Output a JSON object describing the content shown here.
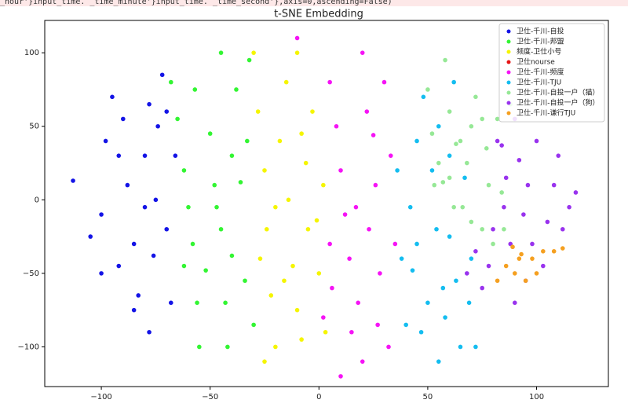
{
  "code_line": "_hour'}input_time. _time_minute'}input_time. _time_second'},axis=0,ascending=False)",
  "chart_data": {
    "type": "scatter",
    "title": "t-SNE Embedding",
    "xlim": [
      -126,
      133
    ],
    "ylim": [
      -127,
      122
    ],
    "xticks": [
      {
        "value": -100,
        "label": "−100"
      },
      {
        "value": -50,
        "label": "−50"
      },
      0,
      50,
      100
    ],
    "yticks": [
      {
        "value": -100,
        "label": "−100"
      },
      {
        "value": -50,
        "label": "−50"
      },
      0,
      50,
      100
    ],
    "grid": false,
    "legend": "upper right",
    "series": [
      {
        "name": "卫仕-千川-自投",
        "color": "#1414e6",
        "x": [
          -113,
          -105,
          -100,
          -98,
          -95,
          -92,
          -90,
          -88,
          -85,
          -83,
          -80,
          -80,
          -78,
          -76,
          -75,
          -74,
          -72,
          -70,
          -70,
          -68,
          -66,
          -92,
          -100,
          -85,
          -78
        ],
        "y": [
          13,
          -25,
          -10,
          40,
          70,
          30,
          55,
          10,
          -30,
          -65,
          30,
          -5,
          65,
          -38,
          0,
          50,
          85,
          60,
          -20,
          -70,
          30,
          -45,
          -50,
          -75,
          -90
        ]
      },
      {
        "name": "卫仕-千川-邦盟",
        "color": "#33f533",
        "x": [
          -68,
          -65,
          -62,
          -60,
          -58,
          -56,
          -52,
          -50,
          -48,
          -45,
          -43,
          -42,
          -40,
          -40,
          -38,
          -36,
          -34,
          -33,
          -30,
          -32,
          -45,
          -55,
          -62,
          -57,
          -47
        ],
        "y": [
          80,
          55,
          20,
          -5,
          -30,
          -70,
          -48,
          45,
          10,
          -20,
          -70,
          -100,
          -38,
          30,
          75,
          12,
          -55,
          40,
          -85,
          95,
          100,
          -100,
          -45,
          75,
          -5
        ]
      },
      {
        "name": "频度-卫仕小号",
        "color": "#f5f500",
        "x": [
          -30,
          -28,
          -25,
          -24,
          -22,
          -20,
          -18,
          -15,
          -14,
          -12,
          -10,
          -8,
          -6,
          -5,
          -3,
          -1,
          0,
          2,
          -20,
          -27,
          -10,
          -25,
          3,
          -16,
          -8
        ],
        "y": [
          100,
          60,
          20,
          -20,
          -65,
          -100,
          40,
          80,
          0,
          -45,
          -75,
          -95,
          25,
          -20,
          60,
          -14,
          -50,
          10,
          -5,
          -40,
          100,
          -110,
          -90,
          -55,
          45
        ]
      },
      {
        "name": "卫仕nourse",
        "color": "#e61414",
        "x": [],
        "y": []
      },
      {
        "name": "卫仕-千川-频度",
        "color": "#f514f5",
        "x": [
          -10,
          5,
          8,
          10,
          12,
          14,
          15,
          18,
          20,
          22,
          23,
          25,
          26,
          28,
          30,
          32,
          33,
          2,
          6,
          10,
          35,
          20,
          17,
          5,
          27
        ],
        "y": [
          110,
          80,
          50,
          20,
          -10,
          -40,
          -90,
          -70,
          -110,
          60,
          -20,
          44,
          10,
          -50,
          80,
          -100,
          30,
          -80,
          -60,
          -120,
          -30,
          100,
          -5,
          -30,
          -85
        ]
      },
      {
        "name": "卫仕-千川-TJU",
        "color": "#14bdf0",
        "x": [
          36,
          38,
          40,
          42,
          43,
          45,
          47,
          50,
          52,
          54,
          55,
          57,
          58,
          60,
          62,
          63,
          65,
          67,
          69,
          70,
          72,
          55,
          48,
          60,
          45
        ],
        "y": [
          20,
          -40,
          -85,
          -5,
          -48,
          40,
          -90,
          -70,
          20,
          -20,
          50,
          -60,
          -80,
          -25,
          80,
          -55,
          -100,
          15,
          -70,
          -40,
          -100,
          -110,
          70,
          30,
          -30
        ]
      },
      {
        "name": "卫仕-千川-自投一户（猫）",
        "color": "#96e896",
        "x": [
          50,
          52,
          55,
          57,
          58,
          60,
          62,
          65,
          68,
          70,
          72,
          75,
          78,
          80,
          82,
          85,
          88,
          63,
          70,
          77,
          60,
          84,
          53,
          75,
          66
        ],
        "y": [
          75,
          45,
          25,
          12,
          95,
          60,
          -5,
          40,
          25,
          -15,
          70,
          -20,
          10,
          -30,
          55,
          -20,
          65,
          38,
          50,
          35,
          15,
          5,
          10,
          55,
          -5
        ]
      },
      {
        "name": "卫仕-千川-自投一户（狗）",
        "color": "#9933ee",
        "x": [
          68,
          72,
          75,
          78,
          80,
          82,
          84,
          86,
          88,
          90,
          92,
          94,
          96,
          98,
          100,
          103,
          105,
          108,
          110,
          115,
          118,
          95,
          90,
          85,
          112
        ],
        "y": [
          -50,
          -35,
          -60,
          -45,
          -20,
          40,
          37,
          15,
          -30,
          -70,
          27,
          -10,
          10,
          -30,
          40,
          -45,
          -15,
          10,
          30,
          -5,
          5,
          -55,
          55,
          -5,
          -20
        ]
      },
      {
        "name": "卫仕-千川-谦行TJU",
        "color": "#f5a020",
        "x": [
          82,
          86,
          89,
          92,
          95,
          98,
          100,
          103,
          108,
          112,
          93,
          90
        ],
        "y": [
          -55,
          -45,
          -32,
          -40,
          -55,
          -40,
          -50,
          -35,
          -35,
          -33,
          -37,
          -50
        ]
      }
    ]
  }
}
